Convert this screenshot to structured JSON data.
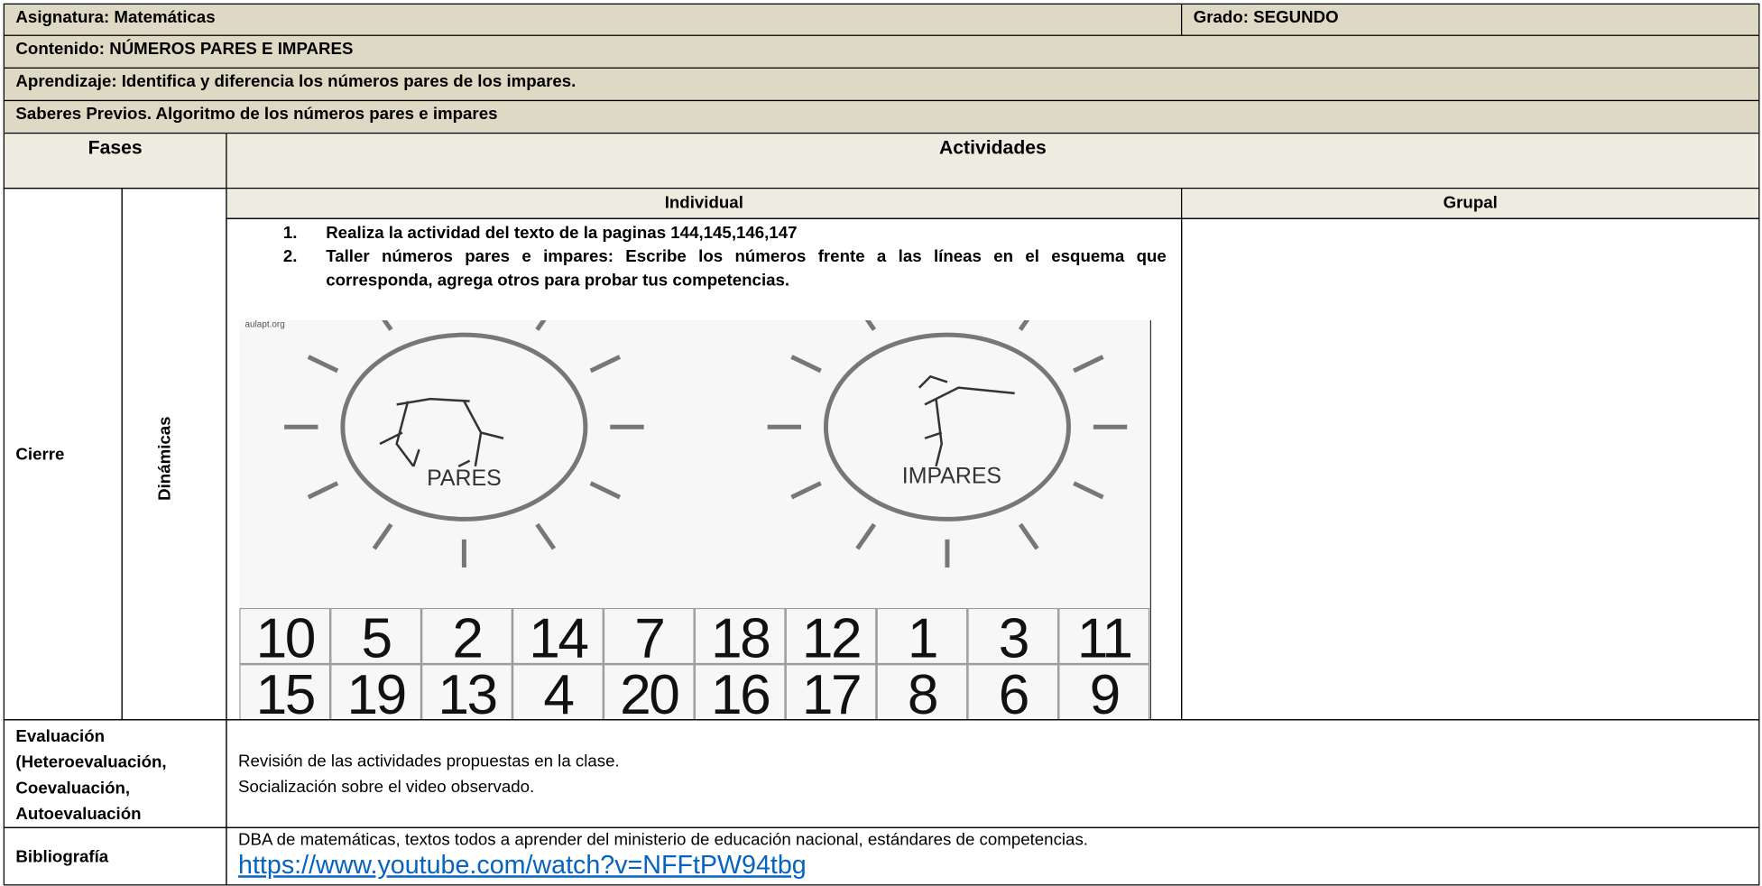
{
  "header": {
    "subject": "Asignatura: Matemáticas",
    "grade": "Grado: SEGUNDO",
    "content": "Contenido: NÚMEROS PARES E IMPARES",
    "learning": "Aprendizaje: Identifica y diferencia los números pares  de los impares.",
    "prior": "Saberes Previos. Algoritmo de los números pares e impares"
  },
  "table": {
    "phases_header": "Fases",
    "activities_header": "Actividades",
    "individual_header": "Individual",
    "group_header": "Grupal",
    "phase": "Cierre",
    "dynamic": "Dinámicas",
    "instructions": [
      {
        "number": "1.",
        "text": "Realiza la actividad del texto de la paginas 144,145,146,147"
      },
      {
        "number": "2.",
        "text": "Taller números pares e impares: Escribe los números frente a las líneas en el esquema que corresponda, agrega otros  para probar tus competencias."
      }
    ],
    "image": {
      "watermark": "aulapt.org",
      "even_label": "PARES",
      "odd_label": "IMPARES",
      "numbers": [
        [
          10,
          5,
          2,
          14,
          7,
          18,
          12,
          1,
          3,
          11
        ],
        [
          15,
          19,
          13,
          4,
          20,
          16,
          17,
          8,
          6,
          9
        ]
      ]
    },
    "evaluation_label": "Evaluación (Heteroevaluación, Coevaluación, Autoevaluación",
    "evaluation_items": [
      "Revisión de las actividades propuestas en  la clase.",
      "Socialización sobre el video observado."
    ],
    "bibliography_label": "Bibliografía",
    "bibliography_text": "DBA de matemáticas, textos todos a aprender del ministerio de educación nacional, estándares de competencias.",
    "bibliography_link": "https://www.youtube.com/watch?v=NFFtPW94tbg"
  }
}
